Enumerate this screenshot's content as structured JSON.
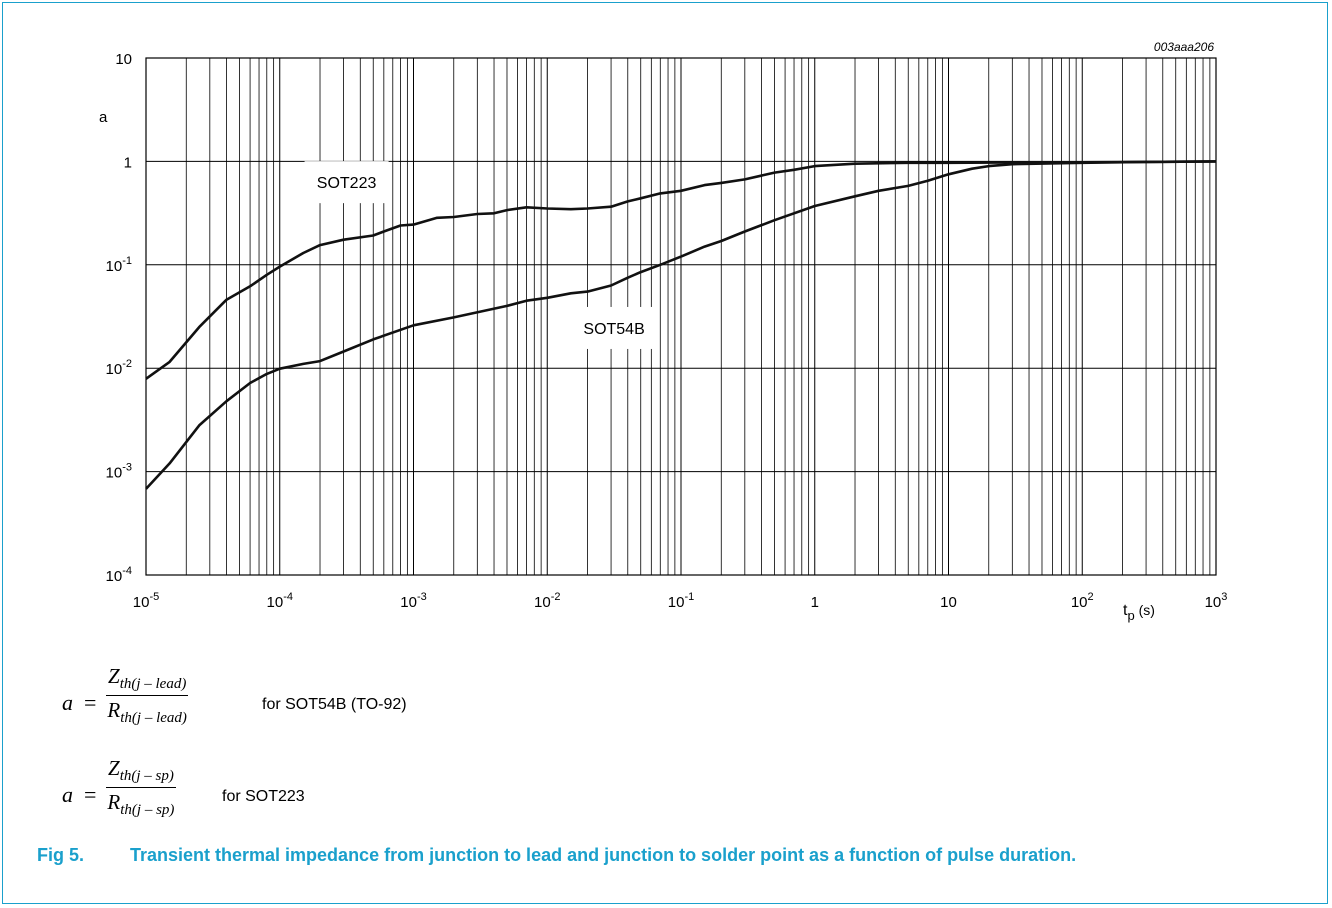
{
  "chart_data": {
    "type": "line",
    "code": "003aaa206",
    "x_scale": "log",
    "y_scale": "log",
    "xlim": [
      1e-05,
      1000
    ],
    "ylim": [
      0.0001,
      10
    ],
    "xlabel": "t",
    "xlabel_sub": "p",
    "xlabel_unit": " (s)",
    "ylabel": "a",
    "x_ticks": [
      {
        "value": 1e-05,
        "base": "10",
        "exp": "-5"
      },
      {
        "value": 0.0001,
        "base": "10",
        "exp": "-4"
      },
      {
        "value": 0.001,
        "base": "10",
        "exp": "-3"
      },
      {
        "value": 0.01,
        "base": "10",
        "exp": "-2"
      },
      {
        "value": 0.1,
        "base": "10",
        "exp": "-1"
      },
      {
        "value": 1,
        "base": "1",
        "exp": ""
      },
      {
        "value": 10,
        "base": "10",
        "exp": ""
      },
      {
        "value": 100,
        "base": "10",
        "exp": "2"
      },
      {
        "value": 1000,
        "base": "10",
        "exp": "3"
      }
    ],
    "y_ticks": [
      {
        "value": 10,
        "base": "10",
        "exp": ""
      },
      {
        "value": 1,
        "base": "1",
        "exp": ""
      },
      {
        "value": 0.1,
        "base": "10",
        "exp": "-1"
      },
      {
        "value": 0.01,
        "base": "10",
        "exp": "-2"
      },
      {
        "value": 0.001,
        "base": "10",
        "exp": "-3"
      },
      {
        "value": 0.0001,
        "base": "10",
        "exp": "-4"
      }
    ],
    "grid": true,
    "series": [
      {
        "name": "SOT223",
        "label_at": [
          0.000316,
          0.63
        ],
        "points": [
          [
            1e-05,
            0.0079
          ],
          [
            1.5e-05,
            0.0115
          ],
          [
            2.5e-05,
            0.025
          ],
          [
            4e-05,
            0.046
          ],
          [
            6e-05,
            0.062
          ],
          [
            8e-05,
            0.08
          ],
          [
            0.0001,
            0.096
          ],
          [
            0.00015,
            0.13
          ],
          [
            0.0002,
            0.155
          ],
          [
            0.0003,
            0.175
          ],
          [
            0.0005,
            0.192
          ],
          [
            0.0006,
            0.21
          ],
          [
            0.0008,
            0.24
          ],
          [
            0.001,
            0.245
          ],
          [
            0.0015,
            0.285
          ],
          [
            0.002,
            0.29
          ],
          [
            0.003,
            0.31
          ],
          [
            0.004,
            0.315
          ],
          [
            0.005,
            0.338
          ],
          [
            0.007,
            0.36
          ],
          [
            0.01,
            0.35
          ],
          [
            0.015,
            0.345
          ],
          [
            0.02,
            0.35
          ],
          [
            0.03,
            0.365
          ],
          [
            0.04,
            0.41
          ],
          [
            0.05,
            0.44
          ],
          [
            0.07,
            0.49
          ],
          [
            0.1,
            0.52
          ],
          [
            0.15,
            0.59
          ],
          [
            0.2,
            0.62
          ],
          [
            0.3,
            0.67
          ],
          [
            0.5,
            0.78
          ],
          [
            0.7,
            0.83
          ],
          [
            1,
            0.9
          ],
          [
            2,
            0.95
          ],
          [
            5,
            0.97
          ],
          [
            10,
            0.97
          ],
          [
            30,
            0.975
          ],
          [
            100,
            0.98
          ],
          [
            300,
            0.99
          ],
          [
            1000,
            1.0
          ]
        ]
      },
      {
        "name": "SOT54B",
        "label_at": [
          0.0316,
          0.0245
        ],
        "points": [
          [
            1e-05,
            0.00068
          ],
          [
            1.5e-05,
            0.0012
          ],
          [
            2.5e-05,
            0.0028
          ],
          [
            4e-05,
            0.0048
          ],
          [
            6e-05,
            0.0072
          ],
          [
            8e-05,
            0.0088
          ],
          [
            0.0001,
            0.0099
          ],
          [
            0.00015,
            0.011
          ],
          [
            0.0002,
            0.0117
          ],
          [
            0.0003,
            0.0145
          ],
          [
            0.0005,
            0.019
          ],
          [
            0.001,
            0.026
          ],
          [
            0.002,
            0.031
          ],
          [
            0.005,
            0.04
          ],
          [
            0.007,
            0.045
          ],
          [
            0.01,
            0.048
          ],
          [
            0.015,
            0.053
          ],
          [
            0.02,
            0.055
          ],
          [
            0.03,
            0.063
          ],
          [
            0.04,
            0.075
          ],
          [
            0.05,
            0.085
          ],
          [
            0.07,
            0.1
          ],
          [
            0.1,
            0.12
          ],
          [
            0.15,
            0.15
          ],
          [
            0.2,
            0.17
          ],
          [
            0.3,
            0.21
          ],
          [
            0.5,
            0.27
          ],
          [
            1,
            0.37
          ],
          [
            2,
            0.46
          ],
          [
            3,
            0.52
          ],
          [
            5,
            0.58
          ],
          [
            7,
            0.65
          ],
          [
            10,
            0.75
          ],
          [
            15,
            0.85
          ],
          [
            20,
            0.9
          ],
          [
            30,
            0.94
          ],
          [
            100,
            0.97
          ],
          [
            300,
            0.99
          ],
          [
            1000,
            1.0
          ]
        ]
      }
    ]
  },
  "formulas": [
    {
      "lhs": "a",
      "eq": "=",
      "num_main": "Z",
      "num_sub": "th(j – lead)",
      "den_main": "R",
      "den_sub": "th(j – lead)",
      "tail": "for SOT54B (TO-92)"
    },
    {
      "lhs": "a",
      "eq": "=",
      "num_main": "Z",
      "num_sub": "th(j – sp)",
      "den_main": "R",
      "den_sub": "th(j – sp)",
      "tail": "for SOT223"
    }
  ],
  "caption": {
    "label": "Fig 5.",
    "text": "Transient thermal impedance from junction to lead and junction to solder point as a function of pulse duration."
  },
  "colors": {
    "accent": "#1aa0cc",
    "line": "#111111",
    "grid": "#000000"
  }
}
